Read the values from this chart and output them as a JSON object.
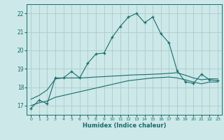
{
  "xlabel": "Humidex (Indice chaleur)",
  "background_color": "#cce8e8",
  "grid_color": "#aacccc",
  "line_color": "#1a6b6b",
  "xlim": [
    -0.5,
    23.5
  ],
  "ylim": [
    16.5,
    22.5
  ],
  "xticks": [
    0,
    1,
    2,
    3,
    4,
    5,
    6,
    7,
    8,
    9,
    10,
    11,
    12,
    13,
    14,
    15,
    16,
    17,
    18,
    19,
    20,
    21,
    22,
    23
  ],
  "yticks": [
    17,
    18,
    19,
    20,
    21,
    22
  ],
  "main_x": [
    0,
    1,
    2,
    3,
    4,
    5,
    6,
    7,
    8,
    9,
    10,
    11,
    12,
    13,
    14,
    15,
    16,
    17,
    18,
    19,
    20,
    21,
    22,
    23
  ],
  "main_y": [
    16.85,
    17.3,
    17.1,
    18.5,
    18.5,
    18.85,
    18.5,
    19.3,
    19.8,
    19.85,
    20.7,
    21.3,
    21.8,
    22.0,
    21.5,
    21.8,
    20.9,
    20.4,
    18.9,
    18.3,
    18.2,
    18.7,
    18.4,
    18.35
  ],
  "upper_x": [
    0,
    1,
    2,
    3,
    4,
    5,
    6,
    7,
    8,
    9,
    10,
    11,
    12,
    13,
    14,
    15,
    16,
    17,
    18,
    19,
    20,
    21,
    22,
    23
  ],
  "upper_y": [
    17.35,
    17.55,
    17.85,
    18.45,
    18.5,
    18.5,
    18.5,
    18.52,
    18.55,
    18.57,
    18.6,
    18.62,
    18.65,
    18.67,
    18.68,
    18.7,
    18.72,
    18.75,
    18.78,
    18.65,
    18.5,
    18.4,
    18.45,
    18.45
  ],
  "lower_x": [
    0,
    1,
    2,
    3,
    4,
    5,
    6,
    7,
    8,
    9,
    10,
    11,
    12,
    13,
    14,
    15,
    16,
    17,
    18,
    19,
    20,
    21,
    22,
    23
  ],
  "lower_y": [
    17.0,
    17.15,
    17.25,
    17.45,
    17.55,
    17.65,
    17.75,
    17.85,
    17.95,
    18.05,
    18.15,
    18.25,
    18.35,
    18.4,
    18.45,
    18.5,
    18.52,
    18.55,
    18.5,
    18.4,
    18.28,
    18.18,
    18.28,
    18.28
  ]
}
